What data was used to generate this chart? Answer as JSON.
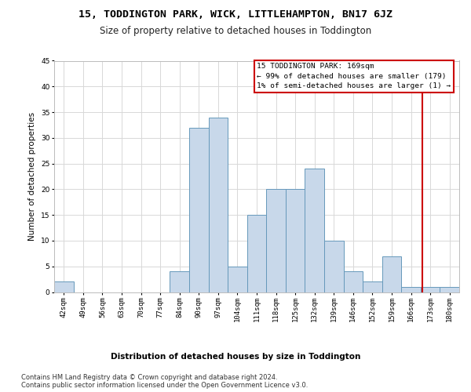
{
  "title1": "15, TODDINGTON PARK, WICK, LITTLEHAMPTON, BN17 6JZ",
  "title2": "Size of property relative to detached houses in Toddington",
  "xlabel": "Distribution of detached houses by size in Toddington",
  "ylabel": "Number of detached properties",
  "bar_labels": [
    "42sqm",
    "49sqm",
    "56sqm",
    "63sqm",
    "70sqm",
    "77sqm",
    "84sqm",
    "90sqm",
    "97sqm",
    "104sqm",
    "111sqm",
    "118sqm",
    "125sqm",
    "132sqm",
    "139sqm",
    "146sqm",
    "152sqm",
    "159sqm",
    "166sqm",
    "173sqm",
    "180sqm"
  ],
  "bar_values": [
    2,
    0,
    0,
    0,
    0,
    0,
    4,
    32,
    34,
    5,
    15,
    20,
    20,
    24,
    10,
    4,
    2,
    7,
    1,
    1,
    1
  ],
  "bar_color": "#c8d8ea",
  "bar_edge_color": "#6699bb",
  "vline_x_index": 18.57,
  "annotation_title": "15 TODDINGTON PARK: 169sqm",
  "annotation_line1": "← 99% of detached houses are smaller (179)",
  "annotation_line2": "1% of semi-detached houses are larger (1) →",
  "annotation_box_color": "#cc0000",
  "ylim": [
    0,
    45
  ],
  "yticks": [
    0,
    5,
    10,
    15,
    20,
    25,
    30,
    35,
    40,
    45
  ],
  "footer1": "Contains HM Land Registry data © Crown copyright and database right 2024.",
  "footer2": "Contains public sector information licensed under the Open Government Licence v3.0.",
  "bg_color": "#ffffff",
  "grid_color": "#d8d8d8",
  "title1_fontsize": 9.5,
  "title2_fontsize": 8.5,
  "ylabel_fontsize": 7.5,
  "tick_fontsize": 6.5,
  "ann_fontsize": 6.8,
  "xlabel_fontsize": 7.5,
  "footer_fontsize": 6.0
}
